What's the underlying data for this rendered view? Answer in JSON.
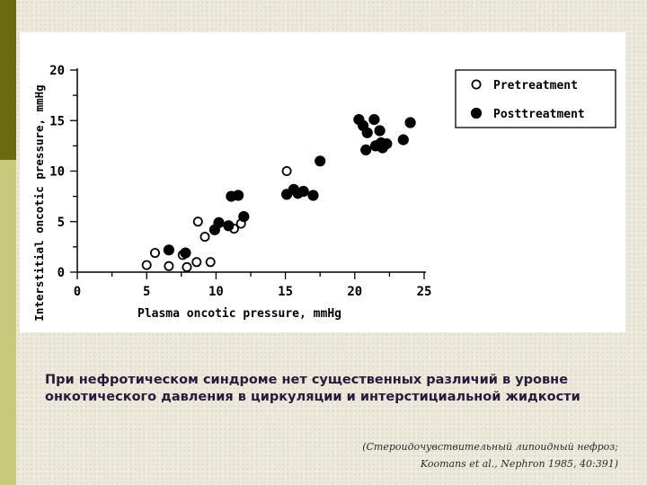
{
  "slide": {
    "colors": {
      "bar_dark": "#6b6a10",
      "bar_light": "#c8c97a",
      "background": "#ece9dc",
      "caption_text": "#2a1a3a"
    },
    "caption": "При нефротическом синдроме нет существенных различий в уровне онкотического давления в циркуляции и интерстициальной жидкости",
    "citation_line1": "(Стероидочувствительный липоидный нефроз;",
    "citation_line2": "Koomans et al., Nephron 1985, 40:391)"
  },
  "chart_data": {
    "type": "scatter",
    "title": "",
    "xlabel": "Plasma oncotic pressure, mmHg",
    "ylabel": "Interstitial oncotic pressure, mmHg",
    "xlim": [
      0,
      25
    ],
    "ylim": [
      0,
      20
    ],
    "xticks": [
      0,
      5,
      10,
      15,
      20,
      25
    ],
    "yticks": [
      0,
      5,
      10,
      15,
      20
    ],
    "grid": false,
    "legend_position": "top-right",
    "series": [
      {
        "name": "Pretreatment",
        "marker": "open-circle",
        "points": [
          [
            5.0,
            0.7
          ],
          [
            5.6,
            1.9
          ],
          [
            6.6,
            0.6
          ],
          [
            7.6,
            1.7
          ],
          [
            7.9,
            0.5
          ],
          [
            8.6,
            1.0
          ],
          [
            8.7,
            5.0
          ],
          [
            9.2,
            3.5
          ],
          [
            9.6,
            1.0
          ],
          [
            11.3,
            4.3
          ],
          [
            11.8,
            4.8
          ],
          [
            15.1,
            10.0
          ]
        ]
      },
      {
        "name": "Posttreatment",
        "marker": "filled-circle",
        "points": [
          [
            6.6,
            2.2
          ],
          [
            7.8,
            1.9
          ],
          [
            9.9,
            4.2
          ],
          [
            10.2,
            4.9
          ],
          [
            10.9,
            4.6
          ],
          [
            11.1,
            7.5
          ],
          [
            11.6,
            7.6
          ],
          [
            12.0,
            5.5
          ],
          [
            15.1,
            7.7
          ],
          [
            15.6,
            8.2
          ],
          [
            15.9,
            7.8
          ],
          [
            16.3,
            8.0
          ],
          [
            17.0,
            7.6
          ],
          [
            17.5,
            11.0
          ],
          [
            20.3,
            15.1
          ],
          [
            20.6,
            14.5
          ],
          [
            20.8,
            12.1
          ],
          [
            20.9,
            13.8
          ],
          [
            21.4,
            15.1
          ],
          [
            21.5,
            12.5
          ],
          [
            21.8,
            14.0
          ],
          [
            21.9,
            12.8
          ],
          [
            22.0,
            12.3
          ],
          [
            22.3,
            12.7
          ],
          [
            23.5,
            13.1
          ],
          [
            24.0,
            14.8
          ]
        ]
      }
    ]
  }
}
